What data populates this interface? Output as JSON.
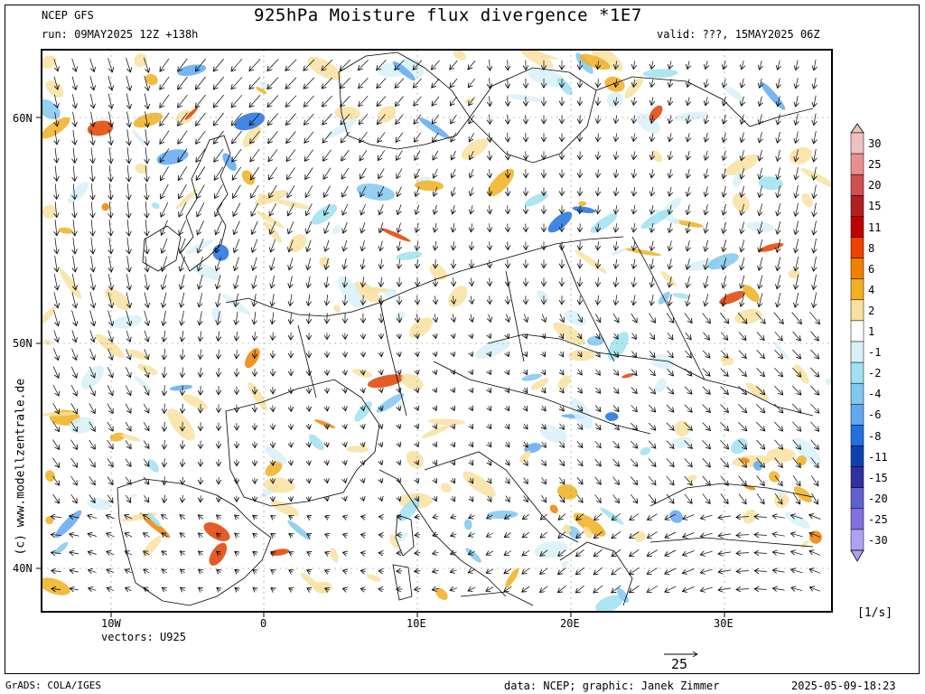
{
  "header": {
    "model": "NCEP GFS",
    "title": "925hPa Moisture flux divergence *1E7",
    "run": "run: 09MAY2025 12Z +138h",
    "valid": "valid: ???, 15MAY2025 06Z"
  },
  "map": {
    "lat_labels": [
      "60N",
      "50N",
      "40N"
    ],
    "lon_labels": [
      "10W",
      "0",
      "10E",
      "20E",
      "30E"
    ],
    "vectors_label": "vectors: U925",
    "reference_vector_value": "25",
    "watermark": "(c) www.modellzentrale.de"
  },
  "colorbar": {
    "levels": [
      "30",
      "25",
      "20",
      "15",
      "11",
      "8",
      "6",
      "4",
      "2",
      "1",
      "-1",
      "-2",
      "-4",
      "-6",
      "-8",
      "-11",
      "-15",
      "-20",
      "-25",
      "-30"
    ],
    "colors": [
      "#f0c0c0",
      "#e89090",
      "#d05050",
      "#b02020",
      "#c00000",
      "#f04000",
      "#f08000",
      "#f0b020",
      "#f8e0a0",
      "#ffffff",
      "#d8f0f8",
      "#a0e0f0",
      "#80c8f0",
      "#60a8f0",
      "#2070e0",
      "#1040b0",
      "#3030a0",
      "#6060d0",
      "#8070e0",
      "#b0a0f0"
    ],
    "unit": "[1/s]"
  },
  "footer": {
    "grads": "GrADS: COLA/IGES",
    "credits": "data: NCEP; graphic: Janek Zimmer",
    "timestamp": "2025-05-09-18:23"
  }
}
